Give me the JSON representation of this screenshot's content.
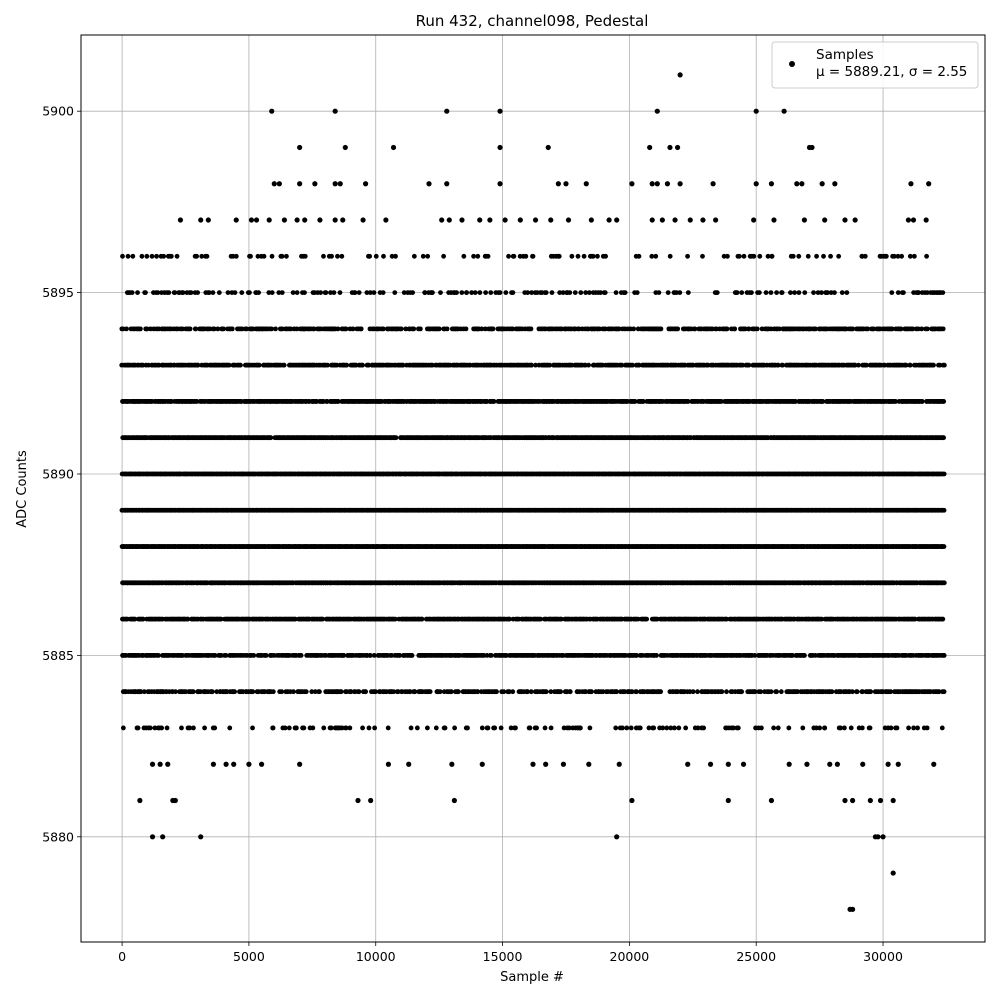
{
  "chart_data": {
    "type": "scatter",
    "title": "Run 432, channel098, Pedestal",
    "xlabel": "Sample #",
    "ylabel": "ADC Counts",
    "xlim": [
      -1620,
      34020
    ],
    "ylim": [
      5877.1,
      5902.1
    ],
    "x_ticks": [
      0,
      5000,
      10000,
      15000,
      20000,
      25000,
      30000
    ],
    "y_ticks": [
      5880,
      5885,
      5890,
      5895,
      5900
    ],
    "grid": true,
    "legend_placement": "top-right",
    "marker_color": "#000000",
    "x_max_sample": 32400,
    "series": [
      {
        "name": "Samples",
        "stat_label": "μ = 5889.21, σ = 2.55",
        "mean": 5889.21,
        "sigma": 2.55,
        "dense_levels": [
          {
            "y": 5884,
            "x_range": [
              0,
              32400
            ],
            "density": 0.55
          },
          {
            "y": 5885,
            "x_range": [
              0,
              32400
            ],
            "density": 0.7
          },
          {
            "y": 5886,
            "x_range": [
              0,
              32400
            ],
            "density": 0.85
          },
          {
            "y": 5887,
            "x_range": [
              0,
              32400
            ],
            "density": 0.95
          },
          {
            "y": 5888,
            "x_range": [
              0,
              32400
            ],
            "density": 1.0
          },
          {
            "y": 5889,
            "x_range": [
              0,
              32400
            ],
            "density": 1.0
          },
          {
            "y": 5890,
            "x_range": [
              0,
              32400
            ],
            "density": 1.0
          },
          {
            "y": 5891,
            "x_range": [
              0,
              32400
            ],
            "density": 0.95
          },
          {
            "y": 5892,
            "x_range": [
              0,
              32400
            ],
            "density": 0.85
          },
          {
            "y": 5893,
            "x_range": [
              0,
              32400
            ],
            "density": 0.7
          },
          {
            "y": 5894,
            "x_range": [
              0,
              32400
            ],
            "density": 0.55
          }
        ],
        "points": [
          {
            "x": 5900,
            "y": 5900
          },
          {
            "x": 8400,
            "y": 5900
          },
          {
            "x": 12800,
            "y": 5900
          },
          {
            "x": 14900,
            "y": 5900
          },
          {
            "x": 21100,
            "y": 5900
          },
          {
            "x": 25000,
            "y": 5900
          },
          {
            "x": 26100,
            "y": 5900
          },
          {
            "x": 22000,
            "y": 5901
          },
          {
            "x": 7000,
            "y": 5899
          },
          {
            "x": 8800,
            "y": 5899
          },
          {
            "x": 10700,
            "y": 5899
          },
          {
            "x": 14900,
            "y": 5899
          },
          {
            "x": 16800,
            "y": 5899
          },
          {
            "x": 20800,
            "y": 5899
          },
          {
            "x": 21600,
            "y": 5899
          },
          {
            "x": 21900,
            "y": 5899
          },
          {
            "x": 27100,
            "y": 5899
          },
          {
            "x": 27200,
            "y": 5899
          },
          {
            "x": 6000,
            "y": 5898
          },
          {
            "x": 6200,
            "y": 5898
          },
          {
            "x": 7000,
            "y": 5898
          },
          {
            "x": 7600,
            "y": 5898
          },
          {
            "x": 8400,
            "y": 5898
          },
          {
            "x": 8600,
            "y": 5898
          },
          {
            "x": 9600,
            "y": 5898
          },
          {
            "x": 12100,
            "y": 5898
          },
          {
            "x": 12800,
            "y": 5898
          },
          {
            "x": 14900,
            "y": 5898
          },
          {
            "x": 17200,
            "y": 5898
          },
          {
            "x": 17500,
            "y": 5898
          },
          {
            "x": 18300,
            "y": 5898
          },
          {
            "x": 20100,
            "y": 5898
          },
          {
            "x": 20900,
            "y": 5898
          },
          {
            "x": 21100,
            "y": 5898
          },
          {
            "x": 21500,
            "y": 5898
          },
          {
            "x": 22000,
            "y": 5898
          },
          {
            "x": 23300,
            "y": 5898
          },
          {
            "x": 25000,
            "y": 5898
          },
          {
            "x": 25600,
            "y": 5898
          },
          {
            "x": 26600,
            "y": 5898
          },
          {
            "x": 26800,
            "y": 5898
          },
          {
            "x": 27600,
            "y": 5898
          },
          {
            "x": 28100,
            "y": 5898
          },
          {
            "x": 31100,
            "y": 5898
          },
          {
            "x": 31800,
            "y": 5898
          },
          {
            "x": 2300,
            "y": 5897
          },
          {
            "x": 3100,
            "y": 5897
          },
          {
            "x": 3400,
            "y": 5897
          },
          {
            "x": 4500,
            "y": 5897
          },
          {
            "x": 5100,
            "y": 5897
          },
          {
            "x": 5300,
            "y": 5897
          },
          {
            "x": 5800,
            "y": 5897
          },
          {
            "x": 6400,
            "y": 5897
          },
          {
            "x": 6900,
            "y": 5897
          },
          {
            "x": 7200,
            "y": 5897
          },
          {
            "x": 7800,
            "y": 5897
          },
          {
            "x": 8400,
            "y": 5897
          },
          {
            "x": 8700,
            "y": 5897
          },
          {
            "x": 9500,
            "y": 5897
          },
          {
            "x": 10400,
            "y": 5897
          },
          {
            "x": 12600,
            "y": 5897
          },
          {
            "x": 12900,
            "y": 5897
          },
          {
            "x": 13400,
            "y": 5897
          },
          {
            "x": 14100,
            "y": 5897
          },
          {
            "x": 14500,
            "y": 5897
          },
          {
            "x": 15100,
            "y": 5897
          },
          {
            "x": 15700,
            "y": 5897
          },
          {
            "x": 16300,
            "y": 5897
          },
          {
            "x": 16900,
            "y": 5897
          },
          {
            "x": 17600,
            "y": 5897
          },
          {
            "x": 18500,
            "y": 5897
          },
          {
            "x": 19200,
            "y": 5897
          },
          {
            "x": 19500,
            "y": 5897
          },
          {
            "x": 20900,
            "y": 5897
          },
          {
            "x": 21300,
            "y": 5897
          },
          {
            "x": 21800,
            "y": 5897
          },
          {
            "x": 22400,
            "y": 5897
          },
          {
            "x": 22900,
            "y": 5897
          },
          {
            "x": 23400,
            "y": 5897
          },
          {
            "x": 24900,
            "y": 5897
          },
          {
            "x": 25700,
            "y": 5897
          },
          {
            "x": 26900,
            "y": 5897
          },
          {
            "x": 27700,
            "y": 5897
          },
          {
            "x": 28500,
            "y": 5897
          },
          {
            "x": 28900,
            "y": 5897
          },
          {
            "x": 31000,
            "y": 5897
          },
          {
            "x": 31200,
            "y": 5897
          },
          {
            "x": 31700,
            "y": 5897
          },
          {
            "x": 1200,
            "y": 5882
          },
          {
            "x": 1500,
            "y": 5882
          },
          {
            "x": 1800,
            "y": 5882
          },
          {
            "x": 3600,
            "y": 5882
          },
          {
            "x": 4100,
            "y": 5882
          },
          {
            "x": 4400,
            "y": 5882
          },
          {
            "x": 5000,
            "y": 5882
          },
          {
            "x": 5500,
            "y": 5882
          },
          {
            "x": 7000,
            "y": 5882
          },
          {
            "x": 10500,
            "y": 5882
          },
          {
            "x": 11300,
            "y": 5882
          },
          {
            "x": 13000,
            "y": 5882
          },
          {
            "x": 14200,
            "y": 5882
          },
          {
            "x": 16200,
            "y": 5882
          },
          {
            "x": 16700,
            "y": 5882
          },
          {
            "x": 17400,
            "y": 5882
          },
          {
            "x": 18400,
            "y": 5882
          },
          {
            "x": 19600,
            "y": 5882
          },
          {
            "x": 22300,
            "y": 5882
          },
          {
            "x": 23200,
            "y": 5882
          },
          {
            "x": 23900,
            "y": 5882
          },
          {
            "x": 24500,
            "y": 5882
          },
          {
            "x": 26300,
            "y": 5882
          },
          {
            "x": 27000,
            "y": 5882
          },
          {
            "x": 27900,
            "y": 5882
          },
          {
            "x": 28200,
            "y": 5882
          },
          {
            "x": 29200,
            "y": 5882
          },
          {
            "x": 30200,
            "y": 5882
          },
          {
            "x": 30600,
            "y": 5882
          },
          {
            "x": 32000,
            "y": 5882
          },
          {
            "x": 700,
            "y": 5881
          },
          {
            "x": 2000,
            "y": 5881
          },
          {
            "x": 2100,
            "y": 5881
          },
          {
            "x": 9300,
            "y": 5881
          },
          {
            "x": 9800,
            "y": 5881
          },
          {
            "x": 13100,
            "y": 5881
          },
          {
            "x": 20100,
            "y": 5881
          },
          {
            "x": 23900,
            "y": 5881
          },
          {
            "x": 25600,
            "y": 5881
          },
          {
            "x": 28500,
            "y": 5881
          },
          {
            "x": 28800,
            "y": 5881
          },
          {
            "x": 29500,
            "y": 5881
          },
          {
            "x": 29900,
            "y": 5881
          },
          {
            "x": 30400,
            "y": 5881
          },
          {
            "x": 1200,
            "y": 5880
          },
          {
            "x": 1600,
            "y": 5880
          },
          {
            "x": 3100,
            "y": 5880
          },
          {
            "x": 19500,
            "y": 5880
          },
          {
            "x": 29700,
            "y": 5880
          },
          {
            "x": 29800,
            "y": 5880
          },
          {
            "x": 30000,
            "y": 5880
          },
          {
            "x": 30400,
            "y": 5879
          },
          {
            "x": 28700,
            "y": 5878
          },
          {
            "x": 28800,
            "y": 5878
          }
        ]
      }
    ]
  }
}
